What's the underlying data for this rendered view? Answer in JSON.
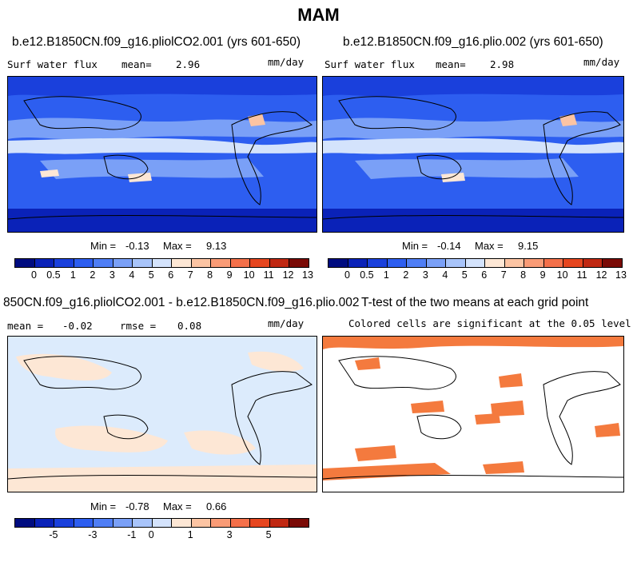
{
  "title": "MAM",
  "colors": {
    "full": [
      "#000c80",
      "#0a22b8",
      "#1a40dc",
      "#2d5ef0",
      "#4f7ef5",
      "#7aa0f7",
      "#a8c4fa",
      "#d4e3fc",
      "#fde7d5",
      "#fcc4a3",
      "#f99b76",
      "#f4704a",
      "#e6461f",
      "#c02812",
      "#7a0a06"
    ],
    "diff": [
      "#000c80",
      "#0a22b8",
      "#1a40dc",
      "#2d5ef0",
      "#4f7ef5",
      "#7aa0f7",
      "#a8c4fa",
      "#d4e3fc",
      "#fde7d5",
      "#fcc4a3",
      "#f99b76",
      "#f4704a",
      "#e6461f",
      "#c02812",
      "#7a0a06"
    ],
    "sig": "#f47a3e",
    "diff_bg": "#dcebfc",
    "diff_pos": "#fde7d5"
  },
  "panels": {
    "p1": {
      "title": "b.e12.B1850CN.f09_g16.pliolCO2.001 (yrs 601-650)",
      "variable": "Surf water flux",
      "mean_label": "mean=",
      "mean_value": "2.96",
      "units": "mm/day",
      "min_label": "Min =",
      "min_value": "-0.13",
      "max_label": "Max =",
      "max_value": "9.13"
    },
    "p2": {
      "title": "b.e12.B1850CN.f09_g16.plio.002 (yrs 601-650)",
      "variable": "Surf water flux",
      "mean_label": "mean=",
      "mean_value": "2.98",
      "units": "mm/day",
      "min_label": "Min =",
      "min_value": "-0.14",
      "max_label": "Max =",
      "max_value": "9.15"
    },
    "p3": {
      "title": "850CN.f09_g16.pliolCO2.001 - b.e12.B1850CN.f09_g16.plio.002",
      "mean_label": "mean =",
      "mean_value": "-0.02",
      "rmse_label": "rmse =",
      "rmse_value": "0.08",
      "units": "mm/day",
      "min_label": "Min =",
      "min_value": "-0.78",
      "max_label": "Max =",
      "max_value": "0.66"
    },
    "p4": {
      "title": "T-test of the two means at each grid point",
      "subtitle": "Colored cells are significant at the 0.05 level"
    }
  },
  "chart_data": [
    {
      "type": "heatmap",
      "title": "b.e12.B1850CN.f09_g16.pliolCO2.001 (yrs 601-650)",
      "variable": "Surf water flux",
      "units": "mm/day",
      "mean": 2.96,
      "min": -0.13,
      "max": 9.13,
      "colorbar_levels": [
        0,
        0.5,
        1,
        2,
        3,
        4,
        5,
        6,
        7,
        8,
        9,
        10,
        11,
        12,
        13
      ],
      "colorbar_labels": [
        "0",
        "0.5",
        "1",
        "2",
        "3",
        "4",
        "5",
        "6",
        "7",
        "8",
        "9",
        "10",
        "11",
        "12",
        "13"
      ]
    },
    {
      "type": "heatmap",
      "title": "b.e12.B1850CN.f09_g16.plio.002 (yrs 601-650)",
      "variable": "Surf water flux",
      "units": "mm/day",
      "mean": 2.98,
      "min": -0.14,
      "max": 9.15,
      "colorbar_levels": [
        0,
        0.5,
        1,
        2,
        3,
        4,
        5,
        6,
        7,
        8,
        9,
        10,
        11,
        12,
        13
      ],
      "colorbar_labels": [
        "0",
        "0.5",
        "1",
        "2",
        "3",
        "4",
        "5",
        "6",
        "7",
        "8",
        "9",
        "10",
        "11",
        "12",
        "13"
      ]
    },
    {
      "type": "heatmap",
      "title": "850CN.f09_g16.pliolCO2.001 - b.e12.B1850CN.f09_g16.plio.002",
      "units": "mm/day",
      "mean": -0.02,
      "rmse": 0.08,
      "min": -0.78,
      "max": 0.66,
      "colorbar_labels": [
        "-5",
        "-3",
        "-1",
        "0",
        "1",
        "3",
        "5"
      ]
    },
    {
      "type": "heatmap",
      "title": "T-test of the two means at each grid point",
      "subtitle": "Colored cells are significant at the 0.05 level"
    }
  ]
}
